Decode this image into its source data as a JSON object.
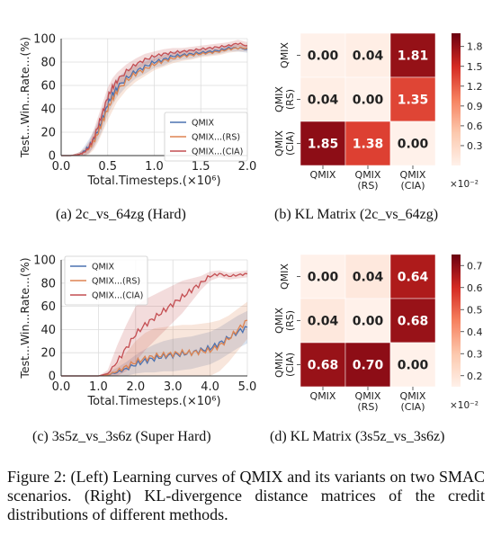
{
  "figure": {
    "caption_label": "Figure 2:",
    "caption_text": "(Left) Learning curves of QMIX and its variants on two SMAC scenarios. (Right) KL-divergence distance matrices of the credit distributions of different methods."
  },
  "panels": {
    "a": {
      "caption": "(a) 2c_vs_64zg (Hard)"
    },
    "b": {
      "caption": "(b) KL Matrix (2c_vs_64zg)"
    },
    "c": {
      "caption": "(c) 3s5z_vs_3s6z (Super Hard)"
    },
    "d": {
      "caption": "(d) KL Matrix (3s5z_vs_3s6z)"
    }
  },
  "colors": {
    "qmix": "#4c72b0",
    "rs": "#dd8452",
    "cia": "#c44e52"
  },
  "chart_data": [
    {
      "id": "a",
      "type": "line",
      "xlabel": "Total.Timesteps.(×10⁶)",
      "ylabel": "Test...Win...Rate...(%)",
      "xlim": [
        0,
        2.0
      ],
      "ylim": [
        0,
        100
      ],
      "xticks": [
        "0.0",
        "0.5",
        "1.0",
        "1.5",
        "2.0"
      ],
      "yticks": [
        "0",
        "20",
        "40",
        "60",
        "80",
        "100"
      ],
      "grid": true,
      "legend": "bottom-right",
      "series": [
        {
          "name": "QMIX",
          "color": "#4c72b0",
          "x": [
            0,
            0.1,
            0.2,
            0.25,
            0.3,
            0.35,
            0.4,
            0.45,
            0.5,
            0.55,
            0.6,
            0.7,
            0.8,
            0.9,
            1.0,
            1.1,
            1.2,
            1.3,
            1.4,
            1.5,
            1.6,
            1.7,
            1.8,
            1.9,
            2.0
          ],
          "y": [
            0,
            0,
            1,
            4,
            8,
            14,
            22,
            32,
            44,
            52,
            58,
            66,
            72,
            76,
            80,
            82,
            85,
            86,
            87,
            88,
            89,
            90,
            92,
            92,
            91
          ],
          "band": [
            0,
            0,
            2,
            4,
            6,
            7,
            8,
            9,
            9,
            9,
            8,
            7,
            6,
            6,
            5,
            5,
            4,
            4,
            4,
            3,
            3,
            3,
            3,
            3,
            3
          ]
        },
        {
          "name": "QMIX...(RS)",
          "color": "#dd8452",
          "x": [
            0,
            0.1,
            0.2,
            0.25,
            0.3,
            0.35,
            0.4,
            0.45,
            0.5,
            0.55,
            0.6,
            0.7,
            0.8,
            0.9,
            1.0,
            1.1,
            1.2,
            1.3,
            1.4,
            1.5,
            1.6,
            1.7,
            1.8,
            1.9,
            2.0
          ],
          "y": [
            0,
            0,
            1,
            3,
            6,
            12,
            20,
            30,
            40,
            48,
            55,
            64,
            70,
            74,
            78,
            81,
            83,
            85,
            86,
            87,
            88,
            89,
            91,
            92,
            92
          ],
          "band": [
            0,
            0,
            2,
            3,
            5,
            7,
            8,
            9,
            10,
            10,
            9,
            8,
            7,
            6,
            5,
            5,
            4,
            4,
            4,
            3,
            3,
            3,
            3,
            3,
            3
          ]
        },
        {
          "name": "QMIX...(CIA)",
          "color": "#c44e52",
          "x": [
            0,
            0.1,
            0.2,
            0.25,
            0.3,
            0.35,
            0.4,
            0.45,
            0.5,
            0.55,
            0.6,
            0.7,
            0.8,
            0.9,
            1.0,
            1.1,
            1.2,
            1.3,
            1.4,
            1.5,
            1.6,
            1.7,
            1.8,
            1.9,
            2.0
          ],
          "y": [
            0,
            0,
            1,
            3,
            7,
            15,
            26,
            38,
            50,
            58,
            64,
            72,
            78,
            82,
            85,
            87,
            88,
            89,
            90,
            91,
            92,
            93,
            94,
            96,
            94
          ],
          "band": [
            0,
            0,
            2,
            3,
            5,
            7,
            8,
            8,
            8,
            8,
            7,
            6,
            5,
            5,
            4,
            4,
            4,
            3,
            3,
            3,
            3,
            3,
            3,
            3,
            3
          ]
        }
      ]
    },
    {
      "id": "b",
      "type": "heatmap",
      "rows": [
        "QMIX",
        "QMIX\n(RS)",
        "QMIX\n(CIA)"
      ],
      "cols": [
        "QMIX",
        "QMIX\n(RS)",
        "QMIX\n(CIA)"
      ],
      "values": [
        [
          0.0,
          0.04,
          1.81
        ],
        [
          0.04,
          0.0,
          1.35
        ],
        [
          1.85,
          1.38,
          0.0
        ]
      ],
      "colorbar_ticks": [
        "0.3",
        "0.6",
        "0.9",
        "1.2",
        "1.5",
        "1.8"
      ],
      "colorbar_range": [
        0,
        2.0
      ],
      "colorbar_multiplier": "×10⁻²"
    },
    {
      "id": "c",
      "type": "line",
      "xlabel": "Total.Timesteps.(×10⁶)",
      "ylabel": "Test...Win...Rate...(%)",
      "xlim": [
        0,
        5.0
      ],
      "ylim": [
        0,
        100
      ],
      "xticks": [
        "0.0",
        "1.0",
        "2.0",
        "3.0",
        "4.0",
        "5.0"
      ],
      "yticks": [
        "0",
        "20",
        "40",
        "60",
        "80",
        "100"
      ],
      "grid": true,
      "legend": "top-left",
      "series": [
        {
          "name": "QMIX",
          "color": "#4c72b0",
          "x": [
            0,
            0.5,
            1.0,
            1.25,
            1.5,
            1.75,
            2.0,
            2.25,
            2.5,
            2.75,
            3.0,
            3.25,
            3.5,
            3.75,
            4.0,
            4.25,
            4.5,
            4.75,
            5.0
          ],
          "y": [
            0,
            0,
            0,
            1,
            3,
            6,
            10,
            13,
            15,
            17,
            18,
            19,
            20,
            22,
            24,
            28,
            33,
            38,
            42
          ],
          "band": [
            0,
            0,
            0,
            2,
            4,
            6,
            8,
            10,
            12,
            13,
            14,
            14,
            14,
            14,
            14,
            14,
            14,
            14,
            14
          ]
        },
        {
          "name": "QMIX...(RS)",
          "color": "#dd8452",
          "x": [
            0,
            0.5,
            1.0,
            1.25,
            1.5,
            1.75,
            2.0,
            2.25,
            2.5,
            2.75,
            3.0,
            3.25,
            3.5,
            3.75,
            4.0,
            4.25,
            4.5,
            4.75,
            5.0
          ],
          "y": [
            0,
            0,
            0,
            1,
            4,
            8,
            12,
            15,
            17,
            18,
            19,
            20,
            20,
            21,
            22,
            26,
            32,
            40,
            48
          ],
          "band": [
            0,
            0,
            0,
            2,
            6,
            12,
            18,
            22,
            24,
            24,
            24,
            24,
            24,
            24,
            24,
            22,
            20,
            18,
            16
          ]
        },
        {
          "name": "QMIX...(CIA)",
          "color": "#c44e52",
          "x": [
            0,
            0.5,
            1.0,
            1.25,
            1.5,
            1.75,
            2.0,
            2.25,
            2.5,
            2.75,
            3.0,
            3.25,
            3.5,
            3.75,
            4.0,
            4.25,
            4.5,
            4.75,
            5.0
          ],
          "y": [
            0,
            0,
            0,
            2,
            12,
            24,
            36,
            44,
            50,
            56,
            62,
            68,
            74,
            80,
            86,
            88,
            86,
            87,
            88
          ],
          "band": [
            0,
            0,
            0,
            3,
            14,
            20,
            24,
            22,
            20,
            18,
            16,
            14,
            10,
            6,
            4,
            3,
            3,
            3,
            3
          ]
        }
      ]
    },
    {
      "id": "d",
      "type": "heatmap",
      "rows": [
        "QMIX",
        "QMIX\n(RS)",
        "QMIX\n(CIA)"
      ],
      "cols": [
        "QMIX",
        "QMIX\n(RS)",
        "QMIX\n(CIA)"
      ],
      "values": [
        [
          0.0,
          0.04,
          0.64
        ],
        [
          0.04,
          0.0,
          0.68
        ],
        [
          0.68,
          0.7,
          0.0
        ]
      ],
      "colorbar_ticks": [
        "0.2",
        "0.3",
        "0.4",
        "0.5",
        "0.6",
        "0.7"
      ],
      "colorbar_range": [
        0.15,
        0.75
      ],
      "colorbar_multiplier": "×10⁻²"
    }
  ]
}
